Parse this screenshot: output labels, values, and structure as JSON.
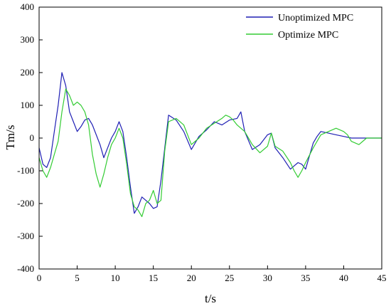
{
  "colors": {
    "unoptimized": "#1f1fb4",
    "optimized": "#33cc33",
    "axis": "#000000",
    "background": "#ffffff"
  },
  "chart_data": {
    "type": "line",
    "title": "",
    "xlabel": "t/s",
    "ylabel": "Tm/s",
    "xlim": [
      0,
      45
    ],
    "ylim": [
      -400,
      400
    ],
    "x_ticks": [
      0,
      5,
      10,
      15,
      20,
      25,
      30,
      35,
      40,
      45
    ],
    "y_ticks": [
      -400,
      -300,
      -200,
      -100,
      0,
      100,
      200,
      300,
      400
    ],
    "x_tick_labels": [
      "0",
      "5",
      "10",
      "15",
      "20",
      "25",
      "30",
      "35",
      "40",
      "45"
    ],
    "y_tick_labels": [
      "-400",
      "-300",
      "-200",
      "-100",
      "0",
      "100",
      "200",
      "300",
      "400"
    ],
    "grid": false,
    "legend_position": "top-right",
    "series": [
      {
        "name": "Unoptimized MPC",
        "color": "#1f1fb4",
        "x": [
          0,
          0.5,
          1.0,
          1.5,
          2.0,
          2.5,
          3.0,
          3.5,
          4.0,
          4.5,
          5.0,
          5.5,
          6.0,
          6.5,
          7.0,
          8.0,
          8.5,
          9.0,
          9.5,
          10.0,
          10.5,
          11.0,
          11.5,
          12.0,
          12.5,
          13.0,
          13.5,
          14.0,
          14.5,
          15.0,
          15.5,
          16.0,
          17.0,
          18.0,
          19.0,
          20.0,
          21.0,
          22.0,
          23.0,
          24.0,
          25.0,
          26.0,
          26.5,
          27.0,
          28.0,
          29.0,
          30.0,
          30.5,
          31.0,
          32.0,
          33.0,
          33.5,
          34.0,
          34.5,
          35.0,
          35.5,
          36.0,
          36.5,
          37.0,
          38.0,
          39.0,
          40.0,
          41.0,
          42.0,
          43.0,
          44.0,
          45.0
        ],
        "y": [
          -30,
          -80,
          -90,
          -60,
          20,
          100,
          200,
          160,
          80,
          50,
          20,
          35,
          55,
          60,
          40,
          -20,
          -60,
          -30,
          0,
          20,
          50,
          20,
          -60,
          -150,
          -230,
          -210,
          -180,
          -190,
          -200,
          -215,
          -210,
          -130,
          70,
          55,
          20,
          -35,
          5,
          25,
          50,
          40,
          55,
          60,
          80,
          20,
          -35,
          -20,
          10,
          15,
          -30,
          -60,
          -95,
          -85,
          -75,
          -80,
          -95,
          -55,
          -15,
          5,
          20,
          15,
          10,
          5,
          0,
          0,
          0,
          0,
          0
        ]
      },
      {
        "name": "Optimize MPC",
        "color": "#33cc33",
        "x": [
          0,
          0.5,
          1.0,
          1.5,
          2.0,
          2.5,
          3.0,
          3.5,
          4.0,
          4.5,
          5.0,
          5.5,
          6.0,
          6.5,
          7.0,
          7.5,
          8.0,
          8.5,
          9.0,
          9.5,
          10.0,
          10.5,
          11.0,
          11.5,
          12.0,
          12.5,
          13.0,
          13.5,
          14.0,
          14.5,
          15.0,
          15.5,
          16.0,
          16.5,
          17.0,
          18.0,
          19.0,
          20.0,
          21.0,
          22.0,
          23.0,
          24.0,
          24.5,
          25.0,
          25.5,
          26.0,
          27.0,
          28.0,
          29.0,
          30.0,
          30.5,
          31.0,
          32.0,
          33.0,
          33.5,
          34.0,
          34.5,
          35.0,
          36.0,
          37.0,
          38.0,
          39.0,
          40.0,
          40.5,
          41.0,
          42.0,
          43.0,
          44.0,
          45.0
        ],
        "y": [
          -60,
          -100,
          -120,
          -90,
          -50,
          -10,
          80,
          150,
          130,
          100,
          110,
          100,
          80,
          40,
          -50,
          -110,
          -150,
          -110,
          -60,
          -20,
          0,
          30,
          0,
          -80,
          -170,
          -210,
          -220,
          -240,
          -200,
          -190,
          -160,
          -200,
          -190,
          -40,
          50,
          60,
          40,
          -20,
          0,
          30,
          45,
          60,
          70,
          65,
          55,
          40,
          20,
          -20,
          -45,
          -25,
          15,
          -25,
          -40,
          -75,
          -100,
          -120,
          -100,
          -75,
          -30,
          10,
          20,
          30,
          20,
          10,
          -10,
          -20,
          0,
          0,
          0
        ]
      }
    ]
  }
}
